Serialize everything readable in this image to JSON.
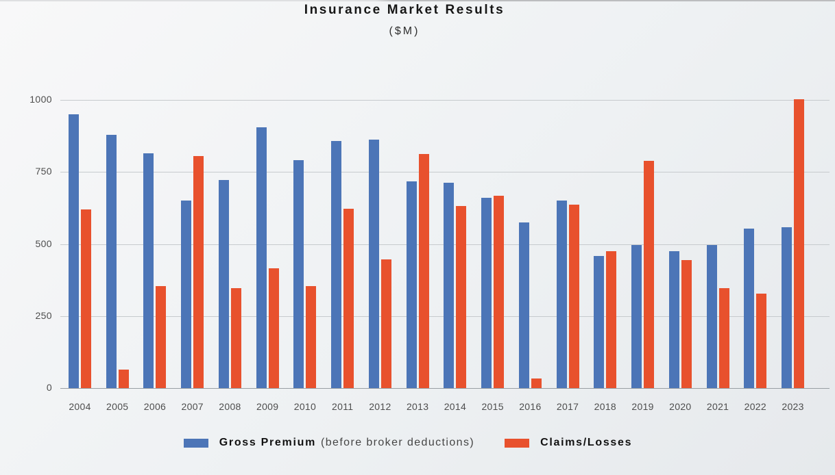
{
  "page": {
    "background_top": "#f8f8f9",
    "background_bottom": "#e6e9ec"
  },
  "chart_data": {
    "type": "bar",
    "title": "Insurance Market Results",
    "subtitle": "($M)",
    "categories": [
      "2004",
      "2005",
      "2006",
      "2007",
      "2008",
      "2009",
      "2010",
      "2011",
      "2012",
      "2013",
      "2014",
      "2015",
      "2016",
      "2017",
      "2018",
      "2019",
      "2020",
      "2021",
      "2022",
      "2023"
    ],
    "series": [
      {
        "name": "Gross Premium",
        "note": "(before broker deductions)",
        "color": "#4C75B7",
        "values": [
          950,
          878,
          815,
          650,
          722,
          905,
          790,
          858,
          862,
          718,
          713,
          660,
          576,
          650,
          459,
          497,
          475,
          497,
          553,
          558
        ]
      },
      {
        "name": "Claims/Losses",
        "note": "",
        "color": "#E8512D",
        "values": [
          621,
          63,
          354,
          806,
          348,
          415,
          354,
          622,
          447,
          813,
          632,
          668,
          34,
          637,
          476,
          789,
          445,
          346,
          329,
          1002
        ]
      }
    ],
    "xlabel": "",
    "ylabel": "",
    "ylim": [
      0,
      1000
    ],
    "yticks": [
      0,
      250,
      500,
      750,
      1000
    ],
    "grid": true,
    "legend_position": "bottom",
    "colors": {
      "gridline": "#c6cacd",
      "zero_line": "#989ea3",
      "axis_text": "#4d4d4d",
      "title_text": "#161616"
    }
  }
}
